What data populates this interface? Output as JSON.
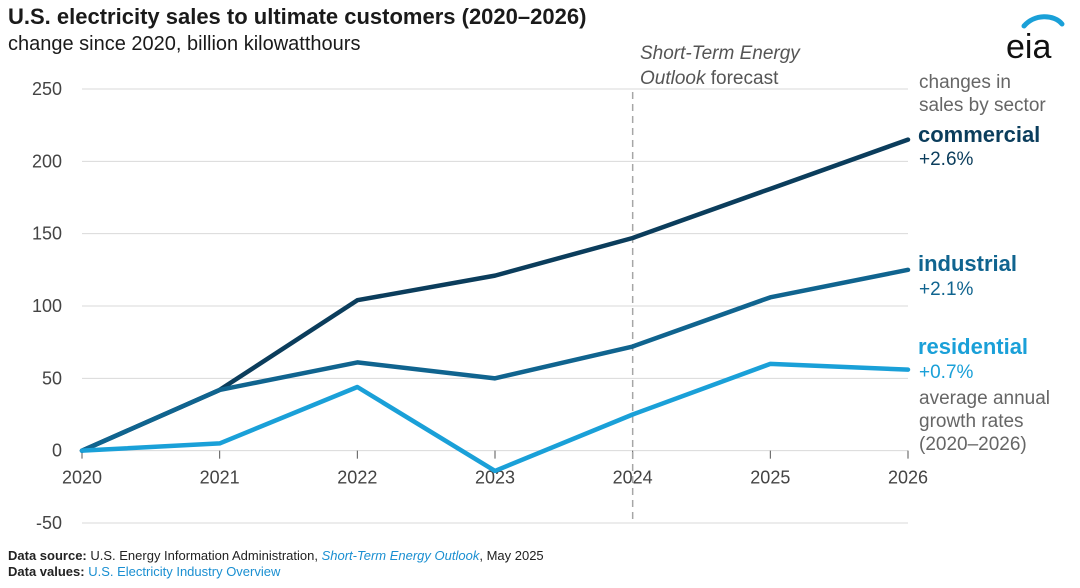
{
  "title": "U.S. electricity sales to ultimate customers (2020–2026)",
  "subtitle": "change since 2020, billion kilowatthours",
  "logo_text": "eia",
  "forecast_label": {
    "line1": "Short-Term Energy",
    "line2_italic": "Outlook",
    "line2_rest": " forecast"
  },
  "legend_header": [
    "changes in",
    "sales by sector"
  ],
  "growth_note": [
    "average annual",
    "growth rates",
    "(2020–2026)"
  ],
  "footer": {
    "source_label": "Data source:",
    "source_text_1": " U.S. Energy Information Administration, ",
    "source_link": "Short-Term Energy Outlook",
    "source_text_2": ", May 2025",
    "values_label": "Data values:",
    "values_link": "U.S. Electricity Industry Overview"
  },
  "colors": {
    "commercial": "#0b3d5c",
    "industrial": "#10648f",
    "residential": "#1aa0d8"
  },
  "chart_data": {
    "type": "line",
    "x": [
      2020,
      2021,
      2022,
      2023,
      2024,
      2025,
      2026
    ],
    "ylim": [
      -50,
      250
    ],
    "yticks": [
      -50,
      0,
      50,
      100,
      150,
      200,
      250
    ],
    "forecast_start": 2024,
    "grid": true,
    "series": [
      {
        "name": "commercial",
        "rate": "+2.6%",
        "values": [
          0,
          42,
          104,
          121,
          147,
          181,
          215
        ]
      },
      {
        "name": "industrial",
        "rate": "+2.1%",
        "values": [
          0,
          42,
          61,
          50,
          72,
          106,
          125
        ]
      },
      {
        "name": "residential",
        "rate": "+0.7%",
        "values": [
          0,
          5,
          44,
          -14,
          25,
          60,
          56
        ]
      }
    ]
  }
}
